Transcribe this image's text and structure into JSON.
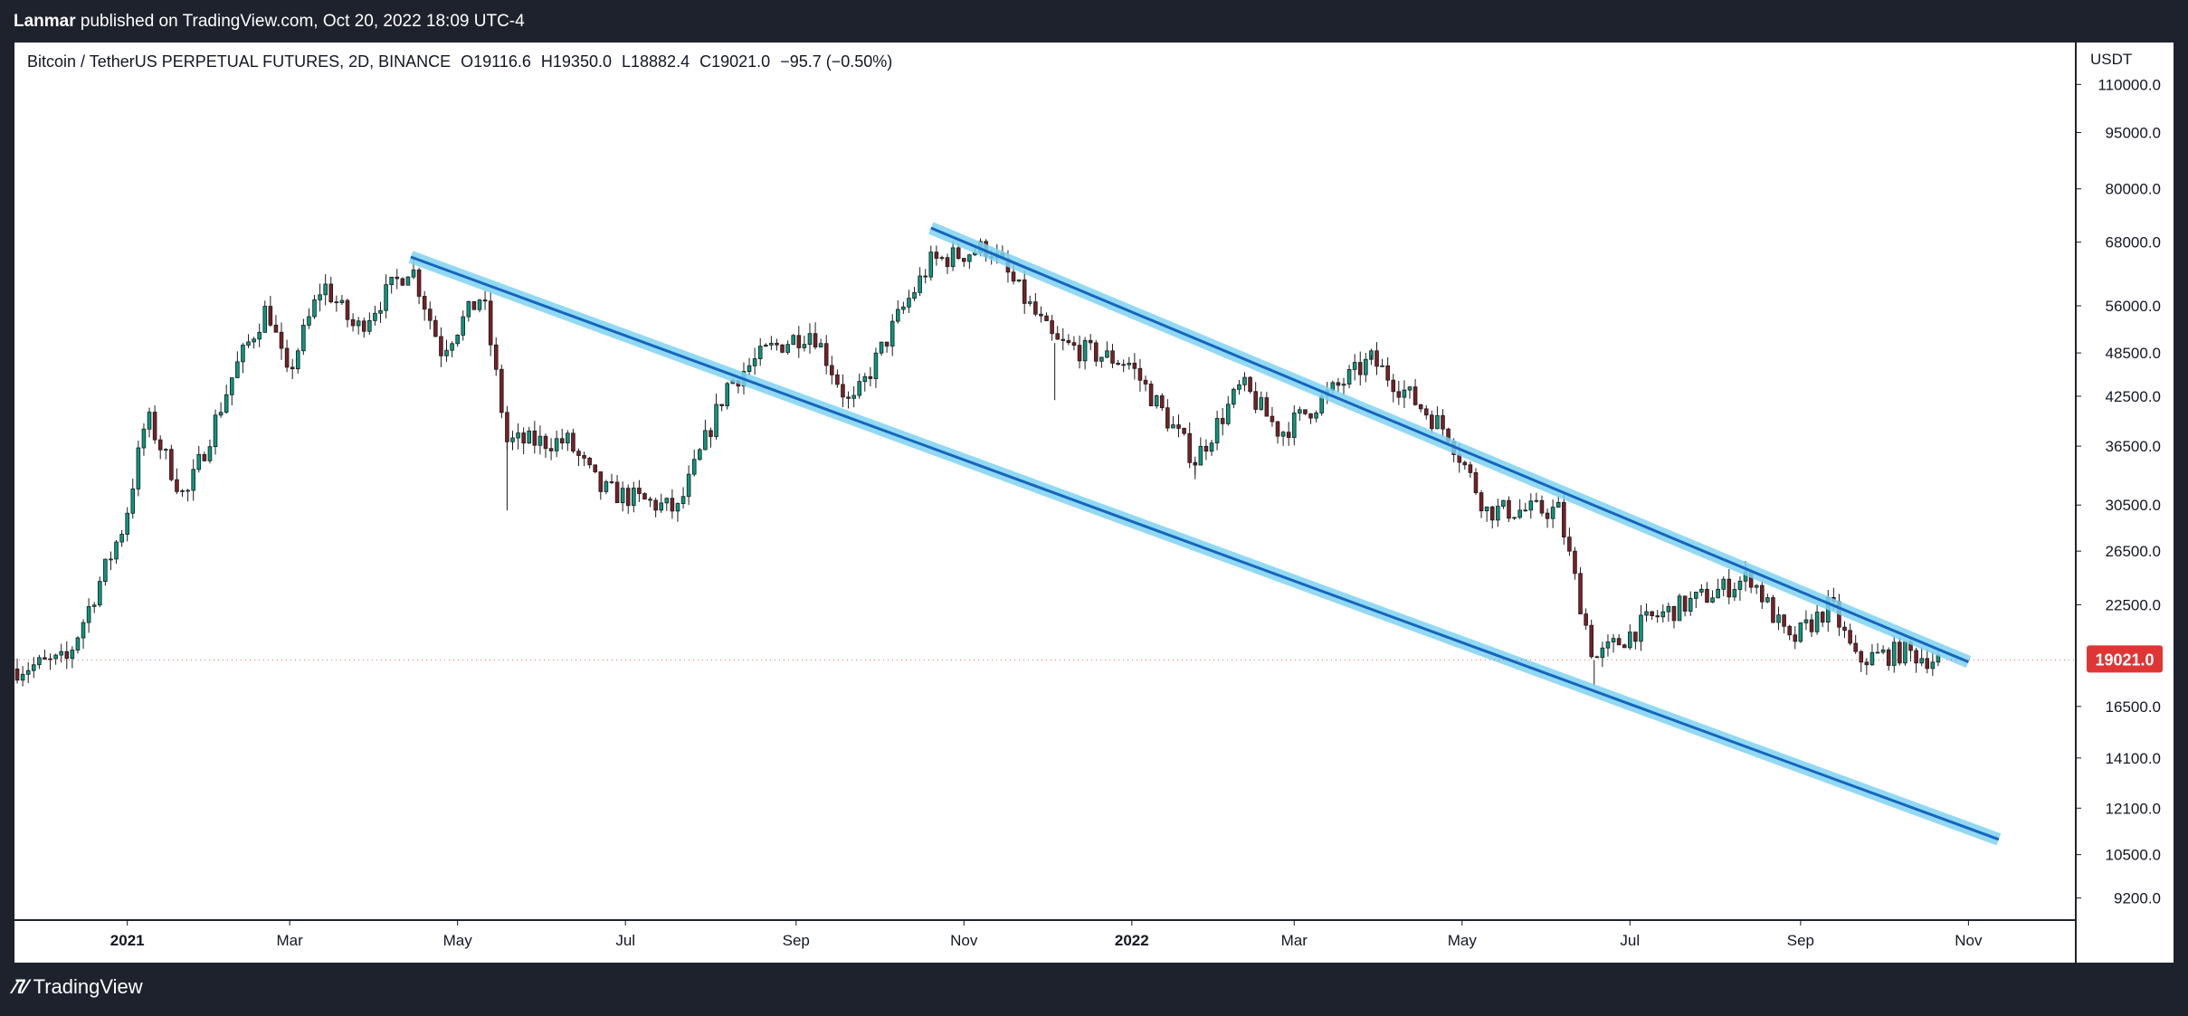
{
  "header": {
    "author": "Lanmar",
    "published_text": "published on TradingView.com, Oct 20, 2022 18:09 UTC-4"
  },
  "legend": {
    "symbol": "Bitcoin / TetherUS PERPETUAL FUTURES, 2D, BINANCE",
    "open": "O19116.6",
    "high": "H19350.0",
    "low": "L18882.4",
    "close": "C19021.0",
    "change": "−95.7 (−0.50%)"
  },
  "footer": {
    "brand": "TradingView"
  },
  "colors": {
    "up": "#089981",
    "down": "#7a1f26",
    "candle_body_dark": "#1b1b1b",
    "channel_core": "#1565c0",
    "channel_glow": "#7fd3f0",
    "price_tag": "#e03535",
    "frame": "#1e222d"
  },
  "chart_data": {
    "type": "candlestick",
    "title": "Bitcoin / TetherUS PERPETUAL FUTURES, 2D, BINANCE",
    "scale": "log",
    "ylim": [
      8600,
      125000
    ],
    "y_axis_unit": "USDT",
    "y_ticks": [
      "110000.0",
      "95000.0",
      "80000.0",
      "68000.0",
      "56000.0",
      "48500.0",
      "42500.0",
      "36500.0",
      "30500.0",
      "26500.0",
      "22500.0",
      "16500.0",
      "14100.0",
      "12100.0",
      "10500.0",
      "9200.0"
    ],
    "x_ticks": [
      "2021",
      "Mar",
      "May",
      "Jul",
      "Sep",
      "Nov",
      "2022",
      "Mar",
      "May",
      "Jul",
      "Sep",
      "Nov"
    ],
    "x_range": [
      "2020-11-21",
      "2022-12-10"
    ],
    "last_price": "19021.0",
    "price_path": [
      [
        "2020-11-21",
        18500
      ],
      [
        "2020-12-10",
        19000
      ],
      [
        "2020-12-31",
        28900
      ],
      [
        "2021-01-08",
        40000
      ],
      [
        "2021-01-22",
        31000
      ],
      [
        "2021-02-09",
        46000
      ],
      [
        "2021-02-21",
        56000
      ],
      [
        "2021-02-28",
        45000
      ],
      [
        "2021-03-13",
        60000
      ],
      [
        "2021-03-25",
        52000
      ],
      [
        "2021-04-14",
        63500
      ],
      [
        "2021-04-25",
        49000
      ],
      [
        "2021-05-10",
        58000
      ],
      [
        "2021-05-19",
        37000
      ],
      [
        "2021-06-10",
        37000
      ],
      [
        "2021-06-22",
        32000
      ],
      [
        "2021-07-20",
        30000
      ],
      [
        "2021-08-07",
        44000
      ],
      [
        "2021-08-22",
        49000
      ],
      [
        "2021-09-07",
        52000
      ],
      [
        "2021-09-21",
        41000
      ],
      [
        "2021-10-08",
        54000
      ],
      [
        "2021-10-20",
        64000
      ],
      [
        "2021-11-10",
        67000
      ],
      [
        "2021-12-04",
        50000
      ],
      [
        "2021-12-31",
        47000
      ],
      [
        "2022-01-24",
        35000
      ],
      [
        "2022-02-10",
        44000
      ],
      [
        "2022-02-24",
        38000
      ],
      [
        "2022-03-29",
        47500
      ],
      [
        "2022-04-26",
        38000
      ],
      [
        "2022-05-10",
        30000
      ],
      [
        "2022-06-05",
        30000
      ],
      [
        "2022-06-18",
        19000
      ],
      [
        "2022-07-08",
        21500
      ],
      [
        "2022-08-14",
        24500
      ],
      [
        "2022-08-28",
        20000
      ],
      [
        "2022-09-12",
        22500
      ],
      [
        "2022-09-21",
        19000
      ],
      [
        "2022-10-08",
        19500
      ],
      [
        "2022-10-20",
        19021
      ]
    ],
    "wicks": [
      [
        "2021-05-19",
        30000
      ],
      [
        "2021-07-20",
        29300
      ],
      [
        "2021-12-04",
        42000
      ],
      [
        "2022-01-24",
        33000
      ],
      [
        "2022-06-18",
        17600
      ],
      [
        "2022-03-29",
        48200
      ]
    ],
    "trendlines": [
      {
        "start": [
          "2021-04-14",
          65000
        ],
        "end": [
          "2022-06-18",
          17600
        ],
        "extend_to": [
          "2022-11-12",
          11000
        ]
      },
      {
        "start": [
          "2021-10-20",
          71000
        ],
        "end": [
          "2022-11-01",
          18900
        ]
      }
    ]
  }
}
